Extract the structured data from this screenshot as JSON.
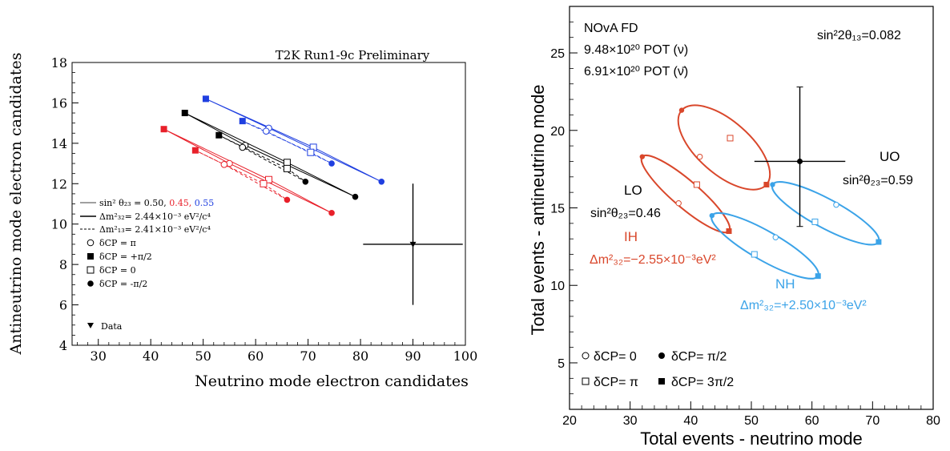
{
  "chart_data": [
    {
      "type": "scatter",
      "title": "T2K Run1-9c Preliminary",
      "xlabel": "Neutrino mode electron candidates",
      "ylabel": "Antineutrino mode electron candidates",
      "xlim": [
        25,
        100
      ],
      "ylim": [
        4,
        18
      ],
      "xticks": [
        30,
        40,
        50,
        60,
        70,
        80,
        90,
        100
      ],
      "yticks": [
        4,
        6,
        8,
        10,
        12,
        14,
        16,
        18
      ],
      "grid": false,
      "legend_position": "left",
      "colors": {
        "s050": "#000000",
        "s045": "#e8202a",
        "s055": "#1f3fe0"
      },
      "legend": {
        "sin_label": "sin² θ₂₃ = 0.50, ",
        "sin_red": "0.45, ",
        "sin_blue": "0.55",
        "dm32": "Δm²₃₂= 2.44×10⁻³ eV²/c⁴",
        "dm13": "Δm²₁₃= 2.41×10⁻³ eV²/c⁴",
        "dcp_pi": "δCP = π",
        "dcp_pi2": "δCP = +π/2",
        "dcp_0": "δCP = 0",
        "dcp_mpi2": "δCP = -π/2",
        "data": "Data"
      },
      "series": [
        {
          "color": "#000000",
          "points": {
            "pi2": [
              46.5,
              15.5
            ],
            "pi": [
              58.0,
              13.9
            ],
            "zero": [
              66.0,
              13.05
            ],
            "mpi2": [
              79.0,
              11.35
            ]
          },
          "points_ih": {
            "pi2": [
              53.0,
              14.4
            ],
            "pi": [
              57.5,
              13.8
            ],
            "zero": [
              66.0,
              12.75
            ],
            "mpi2": [
              69.5,
              12.1
            ]
          }
        },
        {
          "color": "#e8202a",
          "points": {
            "pi2": [
              42.5,
              14.7
            ],
            "pi": [
              55.0,
              13.0
            ],
            "zero": [
              62.5,
              12.2
            ],
            "mpi2": [
              74.5,
              10.55
            ]
          },
          "points_ih": {
            "pi2": [
              48.5,
              13.65
            ],
            "pi": [
              54.0,
              12.95
            ],
            "zero": [
              61.5,
              12.0
            ],
            "mpi2": [
              66.0,
              11.2
            ]
          }
        },
        {
          "color": "#1f3fe0",
          "points": {
            "pi2": [
              50.5,
              16.2
            ],
            "pi": [
              62.5,
              14.75
            ],
            "zero": [
              71.0,
              13.8
            ],
            "mpi2": [
              84.0,
              12.1
            ]
          },
          "points_ih": {
            "pi2": [
              57.5,
              15.1
            ],
            "pi": [
              62.0,
              14.6
            ],
            "zero": [
              70.5,
              13.55
            ],
            "mpi2": [
              74.5,
              13.0
            ]
          }
        }
      ],
      "data_point": {
        "x": 90,
        "y": 9.0,
        "xerr": [
          80.5,
          99.5
        ],
        "yerr": [
          6.0,
          12.0
        ]
      }
    },
    {
      "type": "scatter",
      "xlabel": "Total events - neutrino mode",
      "ylabel": "Total events - antineutrino mode",
      "xlim": [
        20,
        80
      ],
      "ylim": [
        2,
        28
      ],
      "xticks": [
        20,
        30,
        40,
        50,
        60,
        70,
        80
      ],
      "yticks": [
        5,
        10,
        15,
        20,
        25
      ],
      "grid": false,
      "colors": {
        "ih": "#d9472b",
        "nh": "#3ba3e8"
      },
      "text": {
        "nova": "NOvA FD",
        "pot_nu": "9.48×10²⁰ POT (ν)",
        "pot_nubar": "6.91×10²⁰ POT (ν̄)",
        "sin13": "sin²2θ₁₃=0.082",
        "uo": "UO",
        "uo_sin": "sin²θ₂₃=0.59",
        "lo": "LO",
        "lo_sin": "sin²θ₂₃=0.46",
        "ih": "IH",
        "ih_dm": "Δm²₃₂=−2.55×10⁻³eV²",
        "nh": "NH",
        "nh_dm": "Δm²₃₂=+2.50×10⁻³eV²",
        "leg_d0": "δCP= 0",
        "leg_dpi2": "δCP= π/2",
        "leg_dpi": "δCP= π",
        "leg_d3pi2": "δCP= 3π/2"
      },
      "ellipses": [
        {
          "name": "IH UO",
          "color": "#d9472b",
          "points": {
            "pi2": [
              38.5,
              21.3
            ],
            "zero": [
              41.5,
              18.3
            ],
            "pi": [
              46.5,
              19.5
            ],
            "three_pi2": [
              52.5,
              16.5
            ]
          }
        },
        {
          "name": "IH LO",
          "color": "#d9472b",
          "points": {
            "pi2": [
              32.0,
              18.3
            ],
            "zero": [
              38.0,
              15.3
            ],
            "pi": [
              41.0,
              16.5
            ],
            "three_pi2": [
              46.3,
              13.5
            ]
          }
        },
        {
          "name": "NH UO",
          "color": "#3ba3e8",
          "points": {
            "pi2": [
              53.5,
              16.5
            ],
            "zero": [
              64.0,
              15.2
            ],
            "pi": [
              60.5,
              14.1
            ],
            "three_pi2": [
              71.0,
              12.8
            ]
          }
        },
        {
          "name": "NH LO",
          "color": "#3ba3e8",
          "points": {
            "pi2": [
              43.5,
              14.5
            ],
            "zero": [
              54.0,
              13.1
            ],
            "pi": [
              50.5,
              12.0
            ],
            "three_pi2": [
              61.0,
              10.6
            ]
          }
        }
      ],
      "data_point": {
        "x": 58,
        "y": 18,
        "xerr": [
          50.5,
          65.5
        ],
        "yerr": [
          13.8,
          22.8
        ]
      }
    }
  ]
}
